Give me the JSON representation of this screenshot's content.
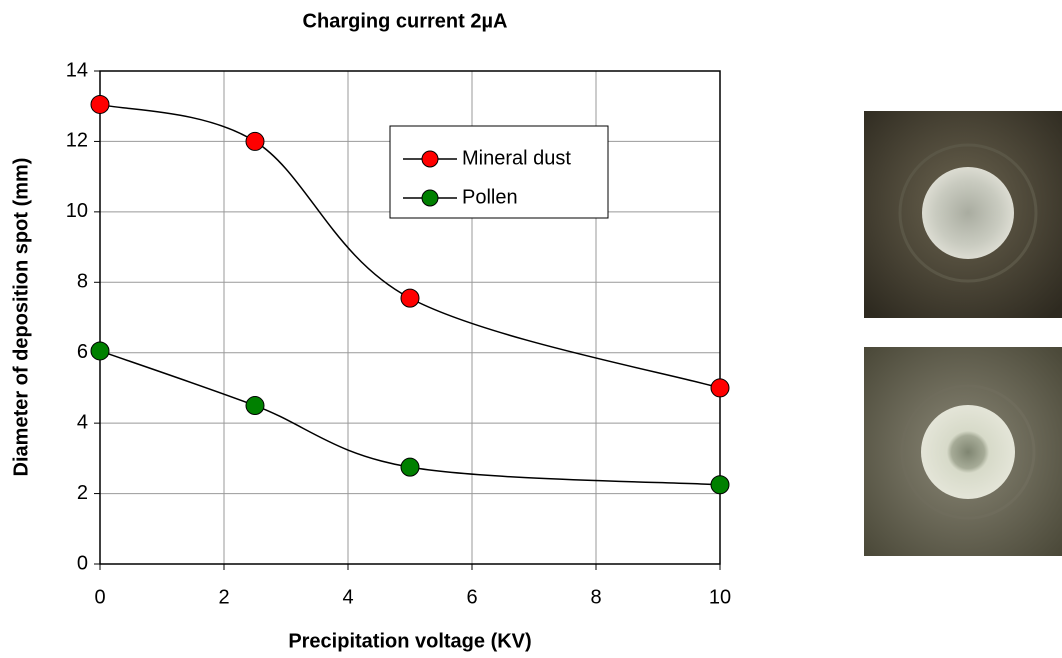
{
  "chart_data": {
    "type": "line",
    "title": "Charging current  2µA",
    "x_label": "Precipitation voltage (KV)",
    "y_label": "Diameter of deposition spot (mm)",
    "x": [
      0,
      2.5,
      5,
      10
    ],
    "series": [
      {
        "name": "Mineral dust",
        "color": "#ff0000",
        "values": [
          13.05,
          12.0,
          7.55,
          5.0
        ]
      },
      {
        "name": "Pollen",
        "color": "#008000",
        "values": [
          6.05,
          4.5,
          2.75,
          2.25
        ]
      }
    ],
    "xlim": [
      0,
      10
    ],
    "xticks": [
      0,
      2,
      4,
      6,
      8,
      10
    ],
    "ylim": [
      0,
      14
    ],
    "yticks": [
      0,
      2,
      4,
      6,
      8,
      10,
      12,
      14
    ],
    "grid": true
  }
}
